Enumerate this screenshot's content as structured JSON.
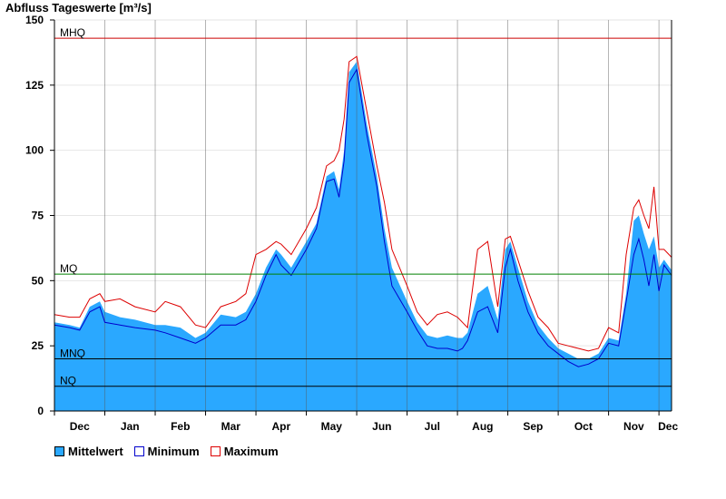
{
  "colors": {
    "mean_fill": "#2aa8ff",
    "min_line": "#0000cc",
    "max_line": "#dd0000",
    "mhq": "#cc0000",
    "mq": "#008000",
    "mnq": "#000000",
    "nq": "#000000"
  },
  "chart_data": {
    "type": "area",
    "title": "Abfluss Tageswerte [m³/s]",
    "xlabel": "",
    "ylabel": "",
    "ylim": [
      0,
      150
    ],
    "yticks": [
      0,
      25,
      50,
      75,
      100,
      125,
      150
    ],
    "month_labels": [
      "Dec",
      "Jan",
      "Feb",
      "Mar",
      "Apr",
      "May",
      "Jun",
      "Jul",
      "Aug",
      "Sep",
      "Oct",
      "Nov",
      "Dec"
    ],
    "grid": true,
    "legend": "bottom-left",
    "reference_lines": [
      {
        "label": "MHQ",
        "value": 143
      },
      {
        "label": "MQ",
        "value": 52.5
      },
      {
        "label": "MNQ",
        "value": 20
      },
      {
        "label": "NQ",
        "value": 9.5
      }
    ],
    "x_months": [
      0,
      0.3,
      0.5,
      0.7,
      0.9,
      1.0,
      1.3,
      1.6,
      2.0,
      2.2,
      2.5,
      2.8,
      3.0,
      3.3,
      3.6,
      3.8,
      4.0,
      4.2,
      4.4,
      4.5,
      4.7,
      5.0,
      5.2,
      5.4,
      5.55,
      5.65,
      5.75,
      5.85,
      6.0,
      6.2,
      6.4,
      6.55,
      6.7,
      7.0,
      7.2,
      7.4,
      7.6,
      7.8,
      8.0,
      8.1,
      8.2,
      8.4,
      8.6,
      8.8,
      8.95,
      9.05,
      9.2,
      9.4,
      9.6,
      9.8,
      10.0,
      10.2,
      10.4,
      10.6,
      10.8,
      11.0,
      11.2,
      11.35,
      11.5,
      11.6,
      11.7,
      11.8,
      11.9,
      12.0,
      12.1,
      12.25
    ],
    "series": [
      {
        "name": "Mittelwert",
        "values": [
          34,
          33,
          32,
          40,
          42,
          38,
          36,
          35,
          33,
          33,
          32,
          28,
          30,
          37,
          36,
          38,
          45,
          55,
          62,
          60,
          55,
          65,
          72,
          90,
          92,
          85,
          100,
          130,
          134,
          110,
          90,
          70,
          55,
          42,
          34,
          29,
          28,
          29,
          28,
          28,
          30,
          45,
          48,
          35,
          62,
          65,
          55,
          42,
          33,
          28,
          24,
          22,
          20,
          20,
          22,
          28,
          27,
          45,
          73,
          75,
          68,
          62,
          67,
          55,
          58,
          54
        ]
      },
      {
        "name": "Minimum",
        "values": [
          33,
          32,
          31,
          38,
          40,
          34,
          33,
          32,
          31,
          30,
          28,
          26,
          28,
          33,
          33,
          35,
          42,
          52,
          60,
          56,
          52,
          62,
          70,
          88,
          89,
          82,
          96,
          126,
          131,
          106,
          86,
          65,
          48,
          38,
          31,
          25,
          24,
          24,
          23,
          24,
          27,
          38,
          40,
          30,
          55,
          62,
          50,
          38,
          30,
          25,
          22,
          19,
          17,
          18,
          20,
          26,
          25,
          42,
          60,
          66,
          58,
          48,
          60,
          46,
          56,
          52
        ]
      },
      {
        "name": "Maximum",
        "values": [
          37,
          36,
          36,
          43,
          45,
          42,
          43,
          40,
          38,
          42,
          40,
          33,
          32,
          40,
          42,
          45,
          60,
          62,
          65,
          64,
          60,
          70,
          78,
          94,
          96,
          100,
          112,
          134,
          136,
          115,
          94,
          80,
          62,
          48,
          38,
          33,
          37,
          38,
          36,
          34,
          32,
          62,
          65,
          40,
          66,
          67,
          58,
          46,
          36,
          32,
          26,
          25,
          24,
          23,
          24,
          32,
          30,
          60,
          78,
          81,
          75,
          70,
          86,
          62,
          62,
          59
        ]
      }
    ]
  }
}
